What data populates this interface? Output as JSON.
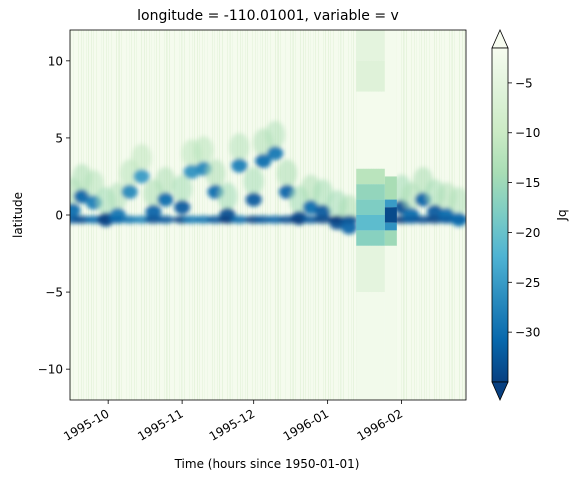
{
  "chart_data": {
    "type": "heatmap",
    "title": "longitude = -110.01001, variable = v",
    "xlabel": "Time (hours since 1950-01-01)",
    "ylabel": "latitude",
    "colorbar_label": "Jq",
    "colormap": "GnBu_r",
    "colorbar_extend": "both",
    "xlim": [
      "1995-09-15",
      "1996-02-28"
    ],
    "ylim": [
      -12,
      12
    ],
    "clim": [
      -35,
      -1.5
    ],
    "x_ticks": [
      {
        "label": "1995-10",
        "date": "1995-10-01"
      },
      {
        "label": "1995-11",
        "date": "1995-11-01"
      },
      {
        "label": "1995-12",
        "date": "1995-12-01"
      },
      {
        "label": "1996-01",
        "date": "1996-01-01"
      },
      {
        "label": "1996-02",
        "date": "1996-02-01"
      }
    ],
    "y_ticks": [
      {
        "label": "10",
        "value": 10
      },
      {
        "label": "5",
        "value": 5
      },
      {
        "label": "0",
        "value": 0
      },
      {
        "label": "−5",
        "value": -5
      },
      {
        "label": "−10",
        "value": -10
      }
    ],
    "colorbar_ticks": [
      {
        "label": "−5",
        "value": -5
      },
      {
        "label": "−10",
        "value": -10
      },
      {
        "label": "−15",
        "value": -15
      },
      {
        "label": "−20",
        "value": -20
      },
      {
        "label": "−25",
        "value": -25
      },
      {
        "label": "−30",
        "value": -30
      }
    ],
    "background_value": -2,
    "features": [
      {
        "date": "1995-09-16",
        "lat": 0.3,
        "value": -30
      },
      {
        "date": "1995-09-20",
        "lat": 1.2,
        "value": -31
      },
      {
        "date": "1995-09-25",
        "lat": 0.8,
        "value": -28
      },
      {
        "date": "1995-09-30",
        "lat": -0.3,
        "value": -33
      },
      {
        "date": "1995-10-05",
        "lat": 0.0,
        "value": -29
      },
      {
        "date": "1995-10-10",
        "lat": 1.5,
        "value": -27
      },
      {
        "date": "1995-10-15",
        "lat": 2.5,
        "value": -25
      },
      {
        "date": "1995-10-20",
        "lat": 0.2,
        "value": -31
      },
      {
        "date": "1995-10-25",
        "lat": 1.0,
        "value": -30
      },
      {
        "date": "1995-11-01",
        "lat": 0.5,
        "value": -32
      },
      {
        "date": "1995-11-05",
        "lat": 2.8,
        "value": -26
      },
      {
        "date": "1995-11-10",
        "lat": 3.0,
        "value": -27
      },
      {
        "date": "1995-11-15",
        "lat": 1.5,
        "value": -30
      },
      {
        "date": "1995-11-20",
        "lat": 0.0,
        "value": -33
      },
      {
        "date": "1995-11-25",
        "lat": 3.2,
        "value": -28
      },
      {
        "date": "1995-12-01",
        "lat": 1.0,
        "value": -32
      },
      {
        "date": "1995-12-05",
        "lat": 3.5,
        "value": -30
      },
      {
        "date": "1995-12-10",
        "lat": 4.0,
        "value": -29
      },
      {
        "date": "1995-12-15",
        "lat": 1.5,
        "value": -31
      },
      {
        "date": "1995-12-20",
        "lat": -0.2,
        "value": -33
      },
      {
        "date": "1995-12-25",
        "lat": 0.5,
        "value": -30
      },
      {
        "date": "1995-12-30",
        "lat": 0.2,
        "value": -32
      },
      {
        "date": "1996-01-05",
        "lat": -0.5,
        "value": -33
      },
      {
        "date": "1996-01-10",
        "lat": -0.8,
        "value": -31
      },
      {
        "date": "1996-02-01",
        "lat": 0.5,
        "value": -33
      },
      {
        "date": "1996-02-05",
        "lat": 0.0,
        "value": -30
      },
      {
        "date": "1996-02-10",
        "lat": 1.0,
        "value": -31
      },
      {
        "date": "1996-02-15",
        "lat": 0.2,
        "value": -32
      },
      {
        "date": "1996-02-20",
        "lat": 0.0,
        "value": -30
      },
      {
        "date": "1996-02-25",
        "lat": -0.3,
        "value": -29
      }
    ]
  }
}
